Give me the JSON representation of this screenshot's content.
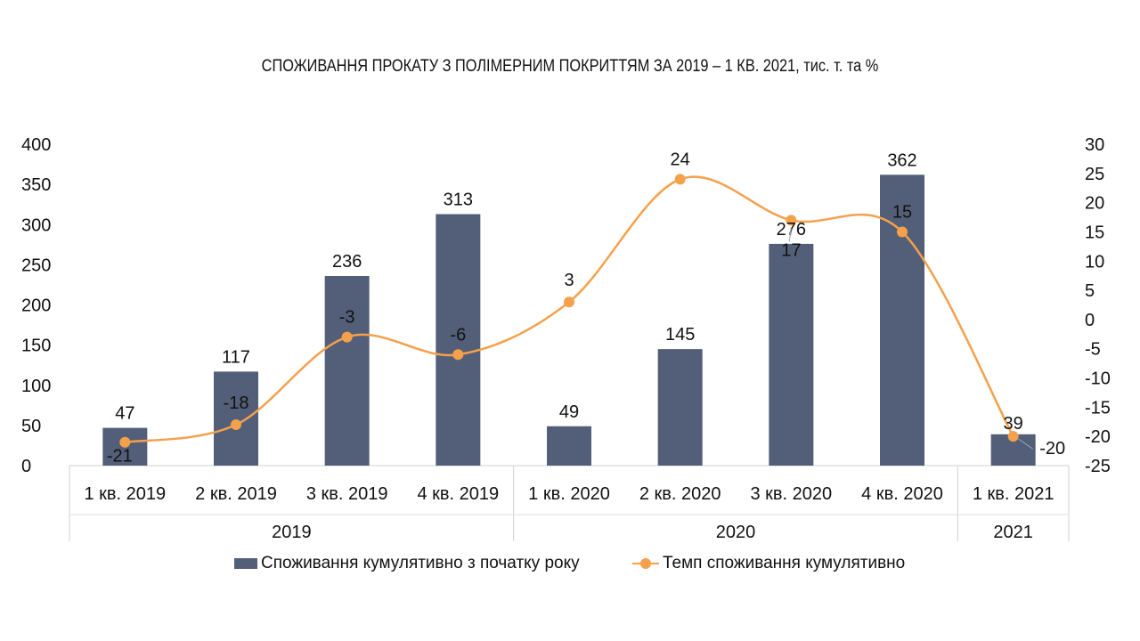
{
  "chart_data": {
    "type": "bar",
    "title": "СПОЖИВАННЯ ПРОКАТУ З ПОЛІМЕРНИМ ПОКРИТТЯМ ЗА 2019 – 1 КВ. 2021, тис. т. та %",
    "categories": [
      "1 кв. 2019",
      "2 кв. 2019",
      "3 кв. 2019",
      "4 кв. 2019",
      "1 кв. 2020",
      "2 кв. 2020",
      "3 кв. 2020",
      "4 кв. 2020",
      "1 кв. 2021"
    ],
    "groups": [
      {
        "label": "2019",
        "count": 4
      },
      {
        "label": "2020",
        "count": 4
      },
      {
        "label": "2021",
        "count": 1
      }
    ],
    "series": [
      {
        "name": "Споживання кумулятивно з початку року",
        "type": "bar",
        "axis": "left",
        "values": [
          47,
          117,
          236,
          313,
          49,
          145,
          276,
          362,
          39
        ],
        "color": "#535f78"
      },
      {
        "name": "Темп споживання кумулятивно",
        "type": "line",
        "axis": "right",
        "values": [
          -21,
          -18,
          -3,
          -6,
          3,
          24,
          17,
          15,
          -20
        ],
        "color": "#f5a04b"
      }
    ],
    "y_left": {
      "min": 0,
      "max": 400,
      "step": 50,
      "ticks": [
        "0",
        "50",
        "100",
        "150",
        "200",
        "250",
        "300",
        "350",
        "400"
      ]
    },
    "y_right": {
      "min": -25,
      "max": 30,
      "step": 5,
      "ticks": [
        "-25",
        "-20",
        "-15",
        "-10",
        "-5",
        "0",
        "5",
        "10",
        "15",
        "20",
        "25",
        "30"
      ]
    },
    "grid": false,
    "legend_position": "bottom"
  }
}
